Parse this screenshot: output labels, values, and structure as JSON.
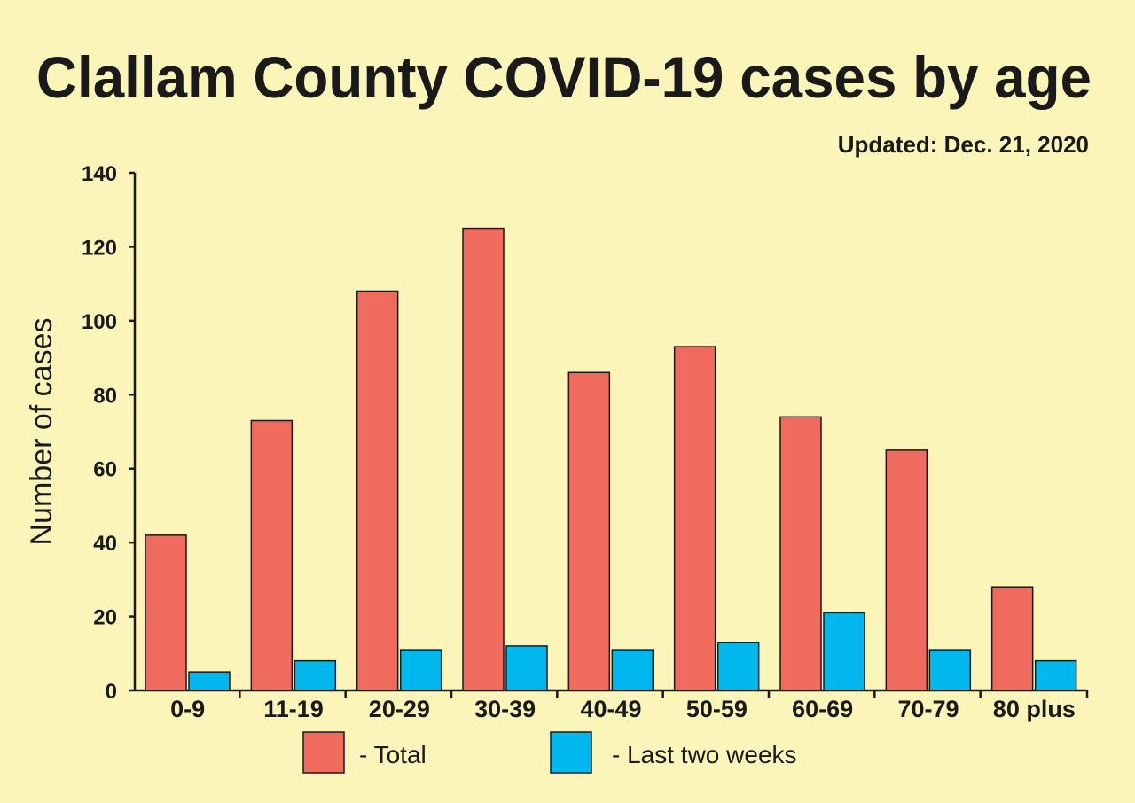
{
  "chart_data": {
    "type": "bar",
    "title": "Clallam County COVID-19 cases by age",
    "subtitle": "Updated: Dec. 21, 2020",
    "xlabel": "",
    "ylabel": "Number of cases",
    "ylim": [
      0,
      140
    ],
    "yticks": [
      0,
      20,
      40,
      60,
      80,
      100,
      120,
      140
    ],
    "categories": [
      "0-9",
      "11-19",
      "20-29",
      "30-39",
      "40-49",
      "50-59",
      "60-69",
      "70-79",
      "80 plus"
    ],
    "series": [
      {
        "name": "- Total",
        "color": "#f06a5e",
        "values": [
          42,
          73,
          108,
          125,
          86,
          93,
          74,
          65,
          28
        ]
      },
      {
        "name": "- Last two weeks",
        "color": "#00b8ee",
        "values": [
          5,
          8,
          11,
          12,
          11,
          13,
          21,
          11,
          8
        ]
      }
    ],
    "grid": false,
    "legend_position": "bottom-center"
  }
}
